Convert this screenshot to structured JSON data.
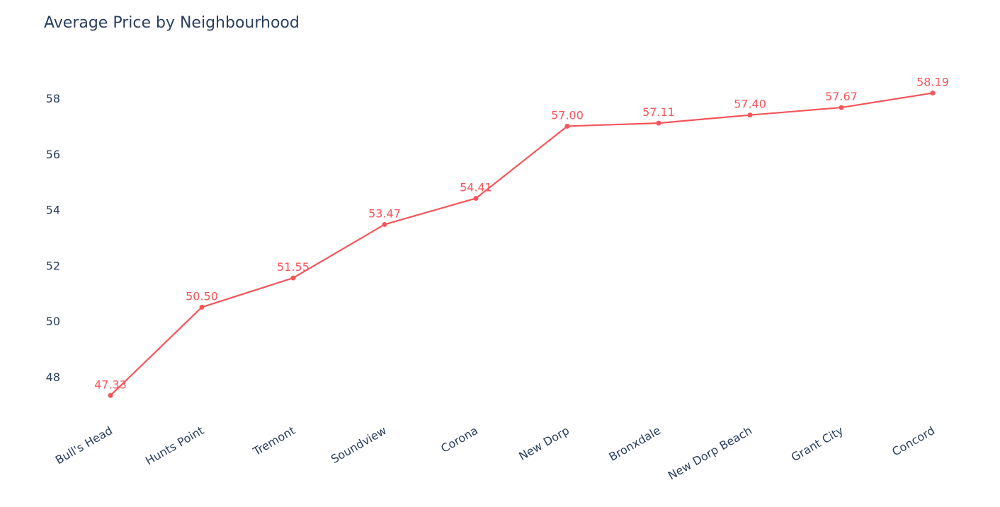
{
  "chart_data": {
    "type": "line",
    "title": "Average Price by Neighbourhood",
    "xlabel": "",
    "ylabel": "",
    "categories": [
      "Bull's Head",
      "Hunts Point",
      "Tremont",
      "Soundview",
      "Corona",
      "New Dorp",
      "Bronxdale",
      "New Dorp Beach",
      "Grant City",
      "Concord"
    ],
    "series": [
      {
        "values": [
          47.33,
          50.5,
          51.55,
          53.47,
          54.41,
          57.0,
          57.11,
          57.4,
          57.67,
          58.19
        ],
        "labels": [
          "47.33",
          "50.50",
          "51.55",
          "53.47",
          "54.41",
          "57.00",
          "57.11",
          "57.40",
          "57.67",
          "58.19"
        ],
        "color": "#ef553b"
      }
    ],
    "yticks": [
      48,
      50,
      52,
      54,
      56,
      58
    ],
    "ylim": [
      46.6,
      59.5
    ],
    "grid": false,
    "legend": "none"
  },
  "colors": {
    "line": "#f5555a",
    "text": "#2a3f5f"
  }
}
